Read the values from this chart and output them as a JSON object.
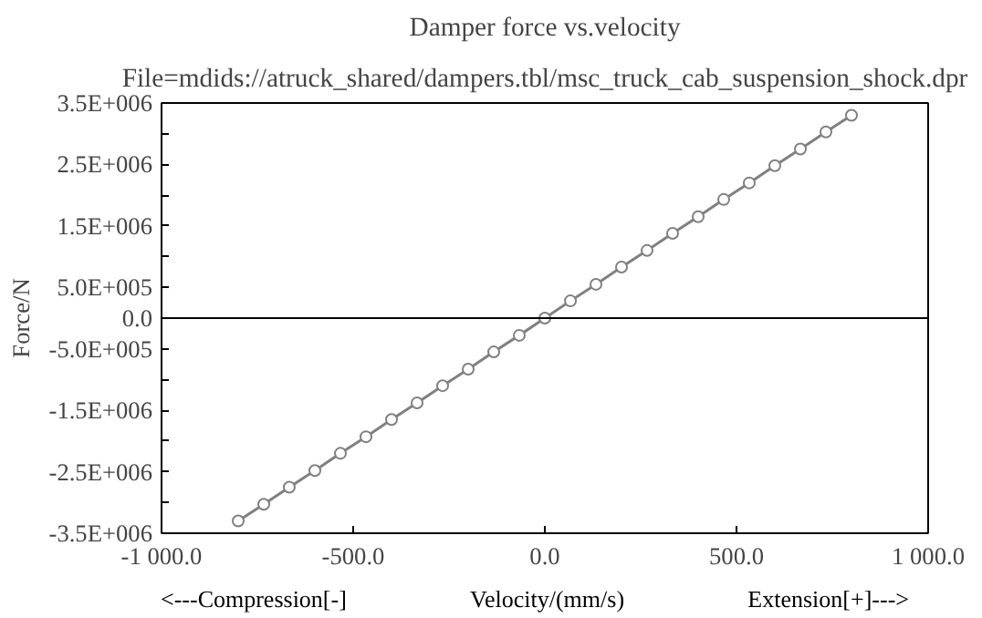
{
  "chart_data": {
    "type": "line",
    "title": "Damper force vs.velocity",
    "subtitle": "File=mdids://atruck_shared/dampers.tbl/msc_truck_cab_suspension_shock.dpr",
    "xlabel": "Velocity/(mm/s)",
    "ylabel": "Force/N",
    "annotations": [
      "<---Compression[-]",
      "Extension[+]--->"
    ],
    "x": [
      -800,
      -733.3,
      -666.7,
      -600,
      -533.3,
      -466.7,
      -400,
      -333.3,
      -266.7,
      -200,
      -133.3,
      -66.7,
      0,
      66.7,
      133.3,
      200,
      266.7,
      333.3,
      400,
      466.7,
      533.3,
      600,
      666.7,
      733.3,
      800
    ],
    "series": [
      {
        "color": "#808080",
        "values": [
          -3300000,
          -3030000,
          -2750000,
          -2480000,
          -2200000,
          -1930000,
          -1650000,
          -1380000,
          -1100000,
          -830000,
          -550000,
          -280000,
          0,
          280000,
          550000,
          830000,
          1100000,
          1380000,
          1650000,
          1930000,
          2200000,
          2480000,
          2750000,
          3030000,
          3300000
        ]
      }
    ],
    "marker": "circle",
    "line_style": "solid",
    "grid": false,
    "xlim": [
      -1000,
      1000
    ],
    "xticks": [
      {
        "value": -1000,
        "label": "-1 000.0"
      },
      {
        "value": -500,
        "label": "-500.0"
      },
      {
        "value": 0,
        "label": "0.0"
      },
      {
        "value": 500,
        "label": "500.0"
      },
      {
        "value": 1000,
        "label": "1 000.0"
      }
    ],
    "ylim": [
      -3500000,
      3500000
    ],
    "yticks": [
      {
        "value": -3500000,
        "label": "-3.5E+006"
      },
      {
        "value": -3000000,
        "label": null
      },
      {
        "value": -2500000,
        "label": "-2.5E+006"
      },
      {
        "value": -2000000,
        "label": null
      },
      {
        "value": -1500000,
        "label": "-1.5E+006"
      },
      {
        "value": -1000000,
        "label": null
      },
      {
        "value": -500000,
        "label": "-5.0E+005"
      },
      {
        "value": 0,
        "label": "0.0"
      },
      {
        "value": 500000,
        "label": "5.0E+005"
      },
      {
        "value": 1000000,
        "label": null
      },
      {
        "value": 1500000,
        "label": "1.5E+006"
      },
      {
        "value": 2000000,
        "label": null
      },
      {
        "value": 2500000,
        "label": "2.5E+006"
      },
      {
        "value": 3000000,
        "label": null
      },
      {
        "value": 3500000,
        "label": "3.5E+006"
      }
    ],
    "ref_lines": [
      {
        "axis": "y",
        "value": 0,
        "color": "#000000"
      }
    ]
  }
}
